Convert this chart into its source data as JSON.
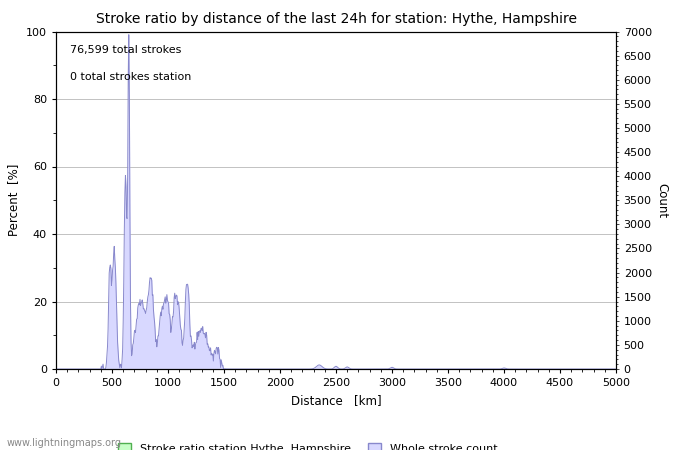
{
  "title": "Stroke ratio by distance of the last 24h for station: Hythe, Hampshire",
  "xlabel": "Distance   [km]",
  "ylabel_left": "Percent  [%]",
  "ylabel_right": "Count",
  "annotation_line1": "76,599 total strokes",
  "annotation_line2": "0 total strokes station",
  "watermark": "www.lightningmaps.org",
  "xlim": [
    0,
    5000
  ],
  "ylim_left": [
    0,
    100
  ],
  "ylim_right": [
    0,
    7000
  ],
  "xticks": [
    0,
    500,
    1000,
    1500,
    2000,
    2500,
    3000,
    3500,
    4000,
    4500,
    5000
  ],
  "yticks_left": [
    0,
    20,
    40,
    60,
    80,
    100
  ],
  "yticks_right": [
    0,
    500,
    1000,
    1500,
    2000,
    2500,
    3000,
    3500,
    4000,
    4500,
    5000,
    5500,
    6000,
    6500,
    7000
  ],
  "legend_label_green": "Stroke ratio station Hythe, Hampshire",
  "legend_label_blue": "Whole stroke count",
  "fill_color_blue": "#d8d8ff",
  "fill_color_green": "#c8ffc8",
  "line_color_blue": "#8888cc",
  "line_color_green": "#50b050",
  "background_color": "#ffffff",
  "grid_color": "#aaaaaa",
  "title_fontsize": 10,
  "label_fontsize": 8.5,
  "tick_fontsize": 8,
  "annotation_fontsize": 8
}
